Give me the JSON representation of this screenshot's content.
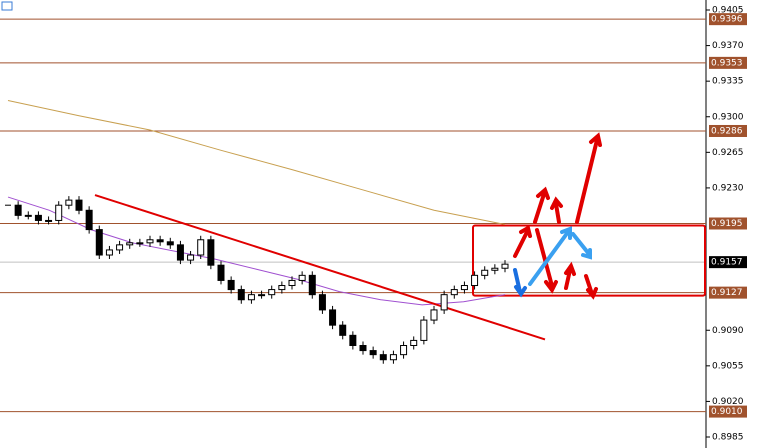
{
  "chart_data": {
    "type": "candlestick",
    "values": [
      0.9213,
      0.9203,
      0.9203,
      0.9198,
      0.9198,
      0.9213,
      0.9218,
      0.9208,
      0.9189,
      0.9164,
      0.9169,
      0.9174,
      0.9176,
      0.9176,
      0.9179,
      0.9177,
      0.9174,
      0.9159,
      0.9164,
      0.9179,
      0.9154,
      0.9139,
      0.913,
      0.912,
      0.9125,
      0.9125,
      0.913,
      0.9134,
      0.9139,
      0.9144,
      0.9125,
      0.911,
      0.9095,
      0.9085,
      0.9075,
      0.907,
      0.9066,
      0.9061,
      0.9066,
      0.9075,
      0.908,
      0.91,
      0.911,
      0.9125,
      0.913,
      0.9134,
      0.9144,
      0.9149,
      0.9151,
      0.9155
    ],
    "series": [
      {
        "color": "#c8a050",
        "values": [
          0.9316,
          0.9301,
          0.9287,
          0.9267,
          0.9248,
          0.9228,
          0.9208,
          0.9194
        ]
      },
      {
        "color": "#a050d0",
        "values": [
          0.9221,
          0.9208,
          0.9189,
          0.9176,
          0.9168,
          0.916,
          0.915,
          0.914,
          0.9128,
          0.912,
          0.9115,
          0.9118,
          0.9125
        ]
      }
    ],
    "ylim": [
      0.8985,
      0.9405
    ],
    "yticks": [
      0.9405,
      {
        "value": 0.937,
        "label": "0.9370"
      },
      0.9335,
      {
        "value": 0.93,
        "label": "0.9300"
      },
      0.9265,
      {
        "value": 0.923,
        "label": "0.9230"
      },
      {
        "value": 0.909,
        "label": "0.9090"
      },
      0.9055,
      {
        "value": 0.902,
        "label": "0.9020"
      },
      0.8985
    ],
    "levels": [
      0.9396,
      0.9353,
      0.9286,
      0.9195,
      0.9127,
      {
        "value": 0.901,
        "label": "0.9010"
      }
    ],
    "level_color": "#a0522d",
    "last_price": 0.9157,
    "trendline": [
      0.9223,
      0.9081
    ],
    "zone": [
      0.9124,
      0.9193
    ]
  }
}
